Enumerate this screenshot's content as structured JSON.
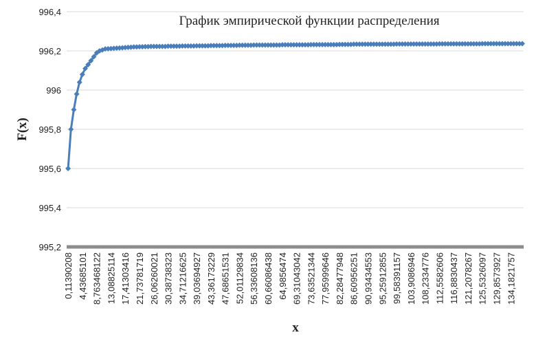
{
  "chart_data": {
    "type": "line",
    "title": "График эмпирической функции распределения",
    "x_label": "x",
    "y_label": "F(x)",
    "color": "#4a7ebb",
    "grid": true,
    "ylim": [
      995.2,
      996.4
    ],
    "yticks": [
      {
        "value": 995.2,
        "label": "995,2"
      },
      {
        "value": 995.4,
        "label": "995,4"
      },
      {
        "value": 995.6,
        "label": "995,6"
      },
      {
        "value": 995.8,
        "label": "995,8"
      },
      996,
      {
        "value": 996.2,
        "label": "996,2"
      },
      {
        "value": 996.4,
        "label": "996,4"
      }
    ],
    "categories": [
      "0,11390208",
      null,
      null,
      null,
      null,
      "4,43685101",
      null,
      null,
      null,
      null,
      "8,763468122",
      null,
      null,
      null,
      null,
      "13,08825114",
      null,
      null,
      null,
      null,
      "17,41303416",
      null,
      null,
      null,
      null,
      "21,73781719",
      null,
      null,
      null,
      null,
      "26,06260021",
      null,
      null,
      null,
      null,
      "30,38738323",
      null,
      null,
      null,
      null,
      "34,71216625",
      null,
      null,
      null,
      null,
      "39,03694927",
      null,
      null,
      null,
      null,
      "43,36173229",
      null,
      null,
      null,
      null,
      "47,68651531",
      null,
      null,
      null,
      null,
      "52,01129834",
      null,
      null,
      null,
      null,
      "56,33608136",
      null,
      null,
      null,
      null,
      "60,66086438",
      null,
      null,
      null,
      null,
      "64,9856474",
      null,
      null,
      null,
      null,
      "69,31043042",
      null,
      null,
      null,
      null,
      "73,63521344",
      null,
      null,
      null,
      null,
      "77,95999646",
      null,
      null,
      null,
      null,
      "82,28477948",
      null,
      null,
      null,
      null,
      "86,60956251",
      null,
      null,
      null,
      null,
      "90,93434553",
      null,
      null,
      null,
      null,
      "95,25912855",
      null,
      null,
      null,
      null,
      "99,58391157",
      null,
      null,
      null,
      null,
      "103,9086946",
      null,
      null,
      null,
      null,
      "108,2334776",
      null,
      null,
      null,
      null,
      "112,5582606",
      null,
      null,
      null,
      null,
      "116,8830437",
      null,
      null,
      null,
      null,
      "121,2078267",
      null,
      null,
      null,
      null,
      "125,5326097",
      null,
      null,
      null,
      null,
      "129,8573927",
      null,
      null,
      null,
      null,
      "134,1821757",
      null,
      null,
      null,
      null
    ],
    "values": [
      995.6,
      995.8,
      995.9,
      995.98,
      996.04,
      996.08,
      996.11,
      996.13,
      996.15,
      996.17,
      996.19,
      996.2,
      996.205,
      996.21,
      996.211,
      996.212,
      996.213,
      996.214,
      996.215,
      996.216,
      996.217,
      996.218,
      996.219,
      996.22,
      996.22,
      996.221,
      996.221,
      996.222,
      996.222,
      996.223,
      996.223,
      996.223,
      996.223,
      996.223,
      996.223,
      996.224,
      996.224,
      996.224,
      996.224,
      996.224,
      996.225,
      996.225,
      996.225,
      996.225,
      996.225,
      996.226,
      996.226,
      996.226,
      996.226,
      996.226,
      996.227,
      996.227,
      996.227,
      996.227,
      996.227,
      996.228,
      996.228,
      996.228,
      996.228,
      996.228,
      996.229,
      996.229,
      996.229,
      996.229,
      996.229,
      996.23,
      996.23,
      996.23,
      996.23,
      996.23,
      996.23,
      996.23,
      996.23,
      996.23,
      996.23,
      996.231,
      996.231,
      996.231,
      996.231,
      996.231,
      996.231,
      996.231,
      996.231,
      996.231,
      996.231,
      996.232,
      996.232,
      996.232,
      996.232,
      996.232,
      996.232,
      996.232,
      996.232,
      996.232,
      996.232,
      996.233,
      996.233,
      996.233,
      996.233,
      996.233,
      996.234,
      996.234,
      996.234,
      996.234,
      996.234,
      996.234,
      996.234,
      996.234,
      996.234,
      996.234,
      996.234,
      996.234,
      996.234,
      996.234,
      996.234,
      996.235,
      996.235,
      996.235,
      996.235,
      996.235,
      996.235,
      996.235,
      996.235,
      996.235,
      996.235,
      996.235,
      996.235,
      996.235,
      996.235,
      996.235,
      996.236,
      996.236,
      996.236,
      996.236,
      996.236,
      996.236,
      996.236,
      996.236,
      996.236,
      996.236,
      996.236,
      996.236,
      996.236,
      996.236,
      996.236,
      996.237,
      996.237,
      996.237,
      996.237,
      996.237,
      996.237,
      996.237,
      996.237,
      996.237,
      996.237,
      996.237,
      996.237,
      996.237,
      996.237,
      996.237
    ]
  }
}
